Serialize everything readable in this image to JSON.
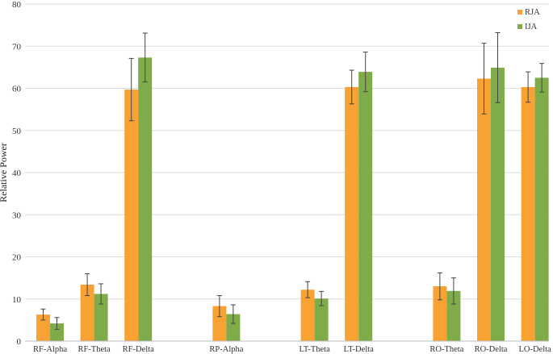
{
  "chart_data": {
    "type": "bar",
    "ylabel": "Relative Power",
    "xlabel": "",
    "ylim": [
      0,
      80
    ],
    "yticks": [
      0,
      10,
      20,
      30,
      40,
      50,
      60,
      70,
      80
    ],
    "grid": true,
    "legend_position": "top-right",
    "categories": [
      "RF-Alpha",
      "RF-Theta",
      "RF-Delta",
      "RP-Alpha",
      "LT-Theta",
      "LT-Delta",
      "RO-Theta",
      "RO-Delta",
      "LO-Delta"
    ],
    "series": [
      {
        "name": "RJA",
        "color": "#f7a233",
        "values": [
          6.3,
          13.4,
          59.7,
          8.3,
          12.2,
          60.3,
          13.0,
          62.3,
          60.3
        ],
        "errors": [
          1.3,
          2.6,
          7.4,
          2.5,
          1.9,
          4.0,
          3.2,
          8.4,
          3.6
        ]
      },
      {
        "name": "IJA",
        "color": "#7fac48",
        "values": [
          4.2,
          11.2,
          67.3,
          6.4,
          10.1,
          63.9,
          11.9,
          64.9,
          62.5
        ],
        "errors": [
          1.4,
          2.4,
          5.8,
          2.2,
          1.7,
          4.7,
          3.1,
          8.3,
          3.4
        ]
      }
    ]
  }
}
